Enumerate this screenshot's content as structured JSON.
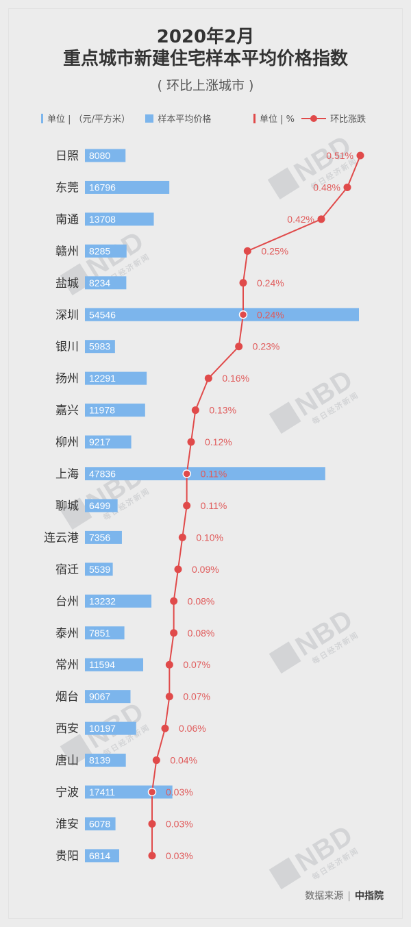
{
  "title_line1": "2020年2月",
  "title_line2": "重点城市新建住宅样本平均价格指数",
  "subtitle": "( 环比上涨城市 )",
  "legend": {
    "left_unit": "单位 | （元/平方米）",
    "left_series": "样本平均价格",
    "right_unit": "单位 | %",
    "right_series": "环比涨跌",
    "bar_color": "#7cb5ec",
    "line_color": "#e04a4a"
  },
  "source": {
    "label": "数据来源",
    "org": "中指院"
  },
  "watermark": {
    "text": "NBD",
    "sub": "每日经济新闻"
  },
  "chart_data": {
    "type": "bar",
    "categories": [
      "日照",
      "东莞",
      "南通",
      "赣州",
      "盐城",
      "深圳",
      "银川",
      "扬州",
      "嘉兴",
      "柳州",
      "上海",
      "聊城",
      "连云港",
      "宿迁",
      "台州",
      "泰州",
      "常州",
      "烟台",
      "西安",
      "唐山",
      "宁波",
      "淮安",
      "贵阳"
    ],
    "series": [
      {
        "name": "样本平均价格",
        "type": "bar",
        "values": [
          8080,
          16796,
          13708,
          8285,
          8234,
          54546,
          5983,
          12291,
          11978,
          9217,
          47836,
          6499,
          7356,
          5539,
          13232,
          7851,
          11594,
          9067,
          10197,
          8139,
          17411,
          6078,
          6814
        ]
      },
      {
        "name": "环比涨跌",
        "type": "line",
        "values": [
          0.51,
          0.48,
          0.42,
          0.25,
          0.24,
          0.24,
          0.23,
          0.16,
          0.13,
          0.12,
          0.11,
          0.11,
          0.1,
          0.09,
          0.08,
          0.08,
          0.07,
          0.07,
          0.06,
          0.04,
          0.03,
          0.03,
          0.03
        ],
        "labels": [
          "0.51%",
          "0.48%",
          "0.42%",
          "0.25%",
          "0.24%",
          "0.24%",
          "0.23%",
          "0.16%",
          "0.13%",
          "0.12%",
          "0.11%",
          "0.11%",
          "0.10%",
          "0.09%",
          "0.08%",
          "0.08%",
          "0.07%",
          "0.07%",
          "0.06%",
          "0.04%",
          "0.03%",
          "0.03%",
          "0.03%"
        ]
      }
    ],
    "bar_xlim": [
      0,
      54546
    ],
    "line_xlim": [
      0.03,
      0.51
    ]
  }
}
